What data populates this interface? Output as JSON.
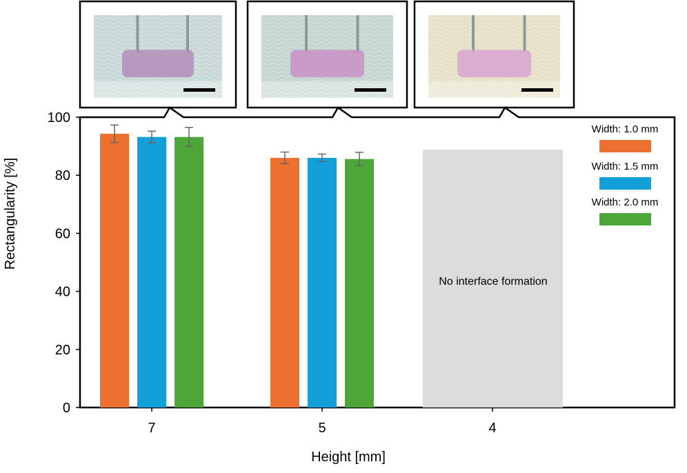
{
  "colors": {
    "width_1_0": "#ec7030",
    "width_1_5": "#13a0d9",
    "width_2_0": "#4ea638",
    "no_formation_bg": "#dcdcdc",
    "error_bar": "#666666"
  },
  "chart_data": {
    "type": "bar",
    "categories": [
      "7",
      "5",
      "4"
    ],
    "xlabel": "Height [mm]",
    "ylabel": "Rectangularity [%]",
    "ylim": [
      0,
      100
    ],
    "yticks": [
      "0",
      "20",
      "40",
      "60",
      "80",
      "100"
    ],
    "grid": false,
    "legend_position": "top-right",
    "series": [
      {
        "name": "Width: 1.0 mm",
        "values": [
          94.3,
          86.0,
          null
        ],
        "errors": [
          3.0,
          2.0,
          null
        ]
      },
      {
        "name": "Width: 1.5 mm",
        "values": [
          93.2,
          86.0,
          null
        ],
        "errors": [
          2.0,
          1.3,
          null
        ]
      },
      {
        "name": "Width: 2.0 mm",
        "values": [
          93.2,
          85.6,
          null
        ],
        "errors": [
          3.3,
          2.3,
          null
        ]
      }
    ],
    "annotations": {
      "no_formation_label": "No interface formation",
      "no_formation_category": "4",
      "no_formation_top": 88.8
    },
    "insets": [
      {
        "category": "7",
        "description": "photo",
        "tint": "#c8d8d6",
        "liquid": "#b487b8"
      },
      {
        "category": "5",
        "description": "photo",
        "tint": "#c5d6d3",
        "liquid": "#c88cc4"
      },
      {
        "category": "4",
        "description": "photo",
        "tint": "#e6e0c6",
        "liquid": "#d8a0d4"
      }
    ]
  }
}
